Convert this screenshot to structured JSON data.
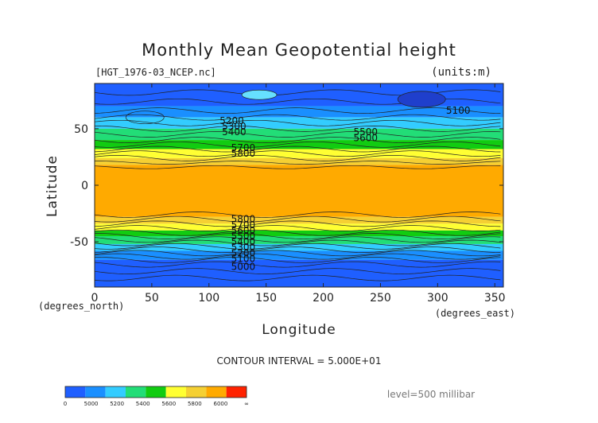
{
  "chart_data": {
    "type": "heatmap",
    "title": "Monthly Mean Geopotential height",
    "subtitle_left": "[HGT_1976-03_NCEP.nc]",
    "subtitle_right": "(units:m)",
    "xlabel": "Longitude",
    "ylabel": "Latitude",
    "x_unit_label": "(degrees_east)",
    "y_unit_label": "(degrees_north)",
    "xlim": [
      0,
      357.5
    ],
    "ylim": [
      -90,
      90
    ],
    "x_ticks": [
      0,
      50,
      100,
      150,
      200,
      250,
      300,
      350
    ],
    "y_ticks": [
      50,
      0,
      -50
    ],
    "contour_interval_text": "CONTOUR INTERVAL = 5.000E+01",
    "level_text": "level=500 millibar",
    "colorbar_labels": [
      "0",
      "5000",
      "5200",
      "5400",
      "5600",
      "5800",
      "6000",
      "∞"
    ],
    "colorbar_colors": [
      "#1f5fff",
      "#1a8fff",
      "#33ccff",
      "#22dd77",
      "#11cc11",
      "#ffff33",
      "#f5d033",
      "#ffaa00",
      "#ff2200"
    ],
    "contour_labels": [
      {
        "text": "5200",
        "lon": 120,
        "lat": 57
      },
      {
        "text": "5300",
        "lon": 122,
        "lat": 52
      },
      {
        "text": "5400",
        "lon": 122,
        "lat": 47
      },
      {
        "text": "5500",
        "lon": 237,
        "lat": 47
      },
      {
        "text": "5600",
        "lon": 237,
        "lat": 42
      },
      {
        "text": "5700",
        "lon": 130,
        "lat": 33
      },
      {
        "text": "5800",
        "lon": 130,
        "lat": 28
      },
      {
        "text": "5100",
        "lon": 318,
        "lat": 66
      },
      {
        "text": "5800",
        "lon": 130,
        "lat": -30
      },
      {
        "text": "5700",
        "lon": 130,
        "lat": -35
      },
      {
        "text": "5600",
        "lon": 130,
        "lat": -40
      },
      {
        "text": "5500",
        "lon": 130,
        "lat": -45
      },
      {
        "text": "5400",
        "lon": 130,
        "lat": -50
      },
      {
        "text": "5300",
        "lon": 130,
        "lat": -55
      },
      {
        "text": "5200",
        "lon": 130,
        "lat": -60
      },
      {
        "text": "5100",
        "lon": 130,
        "lat": -65
      },
      {
        "text": "5000",
        "lon": 130,
        "lat": -72
      }
    ],
    "bands": [
      {
        "lat_top": 90,
        "lat_bottom": 70,
        "color": "#1f5fff"
      },
      {
        "lat_top": 70,
        "lat_bottom": 60,
        "color": "#1a8fff"
      },
      {
        "lat_top": 60,
        "lat_bottom": 50,
        "color": "#33ccff"
      },
      {
        "lat_top": 50,
        "lat_bottom": 40,
        "color": "#22dd77"
      },
      {
        "lat_top": 40,
        "lat_bottom": 32,
        "color": "#11cc11"
      },
      {
        "lat_top": 32,
        "lat_bottom": 24,
        "color": "#ffff33"
      },
      {
        "lat_top": 24,
        "lat_bottom": 18,
        "color": "#f5d033"
      },
      {
        "lat_top": 18,
        "lat_bottom": -28,
        "color": "#ffaa00"
      },
      {
        "lat_top": -28,
        "lat_bottom": -34,
        "color": "#f5d033"
      },
      {
        "lat_top": -34,
        "lat_bottom": -40,
        "color": "#ffff33"
      },
      {
        "lat_top": -40,
        "lat_bottom": -45,
        "color": "#11cc11"
      },
      {
        "lat_top": -45,
        "lat_bottom": -52,
        "color": "#22dd77"
      },
      {
        "lat_top": -52,
        "lat_bottom": -58,
        "color": "#33ccff"
      },
      {
        "lat_top": -58,
        "lat_bottom": -66,
        "color": "#1a8fff"
      },
      {
        "lat_top": -66,
        "lat_bottom": -90,
        "color": "#1f5fff"
      }
    ],
    "contour_lats": [
      82,
      74,
      66,
      60,
      55,
      50,
      45,
      40,
      36,
      32,
      28,
      24,
      20,
      16,
      -26,
      -30,
      -34,
      -38,
      -42,
      -45,
      -48,
      -51,
      -54,
      -57,
      -60,
      -63,
      -66,
      -70,
      -76,
      -82
    ]
  }
}
